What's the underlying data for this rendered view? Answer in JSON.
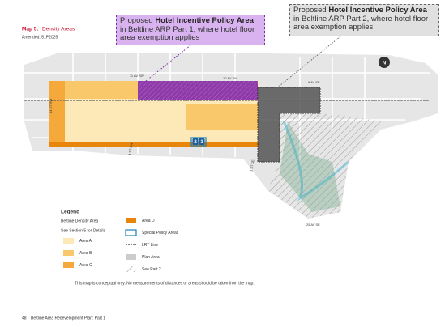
{
  "header": {
    "map_label": "Map 5:",
    "title": "Density Areas",
    "amended": "Amended:  51P2025"
  },
  "callouts": [
    {
      "prefix": "Proposed ",
      "emphasis": "Hotel Incentive Policy Area",
      "suffix": " in Beltline ARP Part 1, where hotel floor area exemption applies"
    },
    {
      "prefix": "Proposed ",
      "emphasis": "Hotel Incentive Policy Area",
      "suffix": " in Beltline ARP Part 2, where hotel floor area exemption applies"
    }
  ],
  "streets": [
    "11 AV SW",
    "10 AV SW",
    "9 AV SE",
    "14 ST SW",
    "4 ST SW",
    "1 ST SE",
    "25 AV SE"
  ],
  "badges": [
    "2",
    "1"
  ],
  "north": "N",
  "legend": {
    "title": "Legend",
    "subtitle": "Beltline Density Area",
    "note": "See Section 5 for Details",
    "items": [
      "Area A",
      "Area B",
      "Area C",
      "Area D",
      "Special Policy Areas",
      "LRT Line",
      "Plan Area",
      "See Part 2"
    ]
  },
  "disclaimer": "This map is conceptual only. No measurements of distances or areas should be taken from the map.",
  "footer": {
    "page": "48",
    "title": "Beltline Area Redevelopment Plan: Part 1"
  }
}
